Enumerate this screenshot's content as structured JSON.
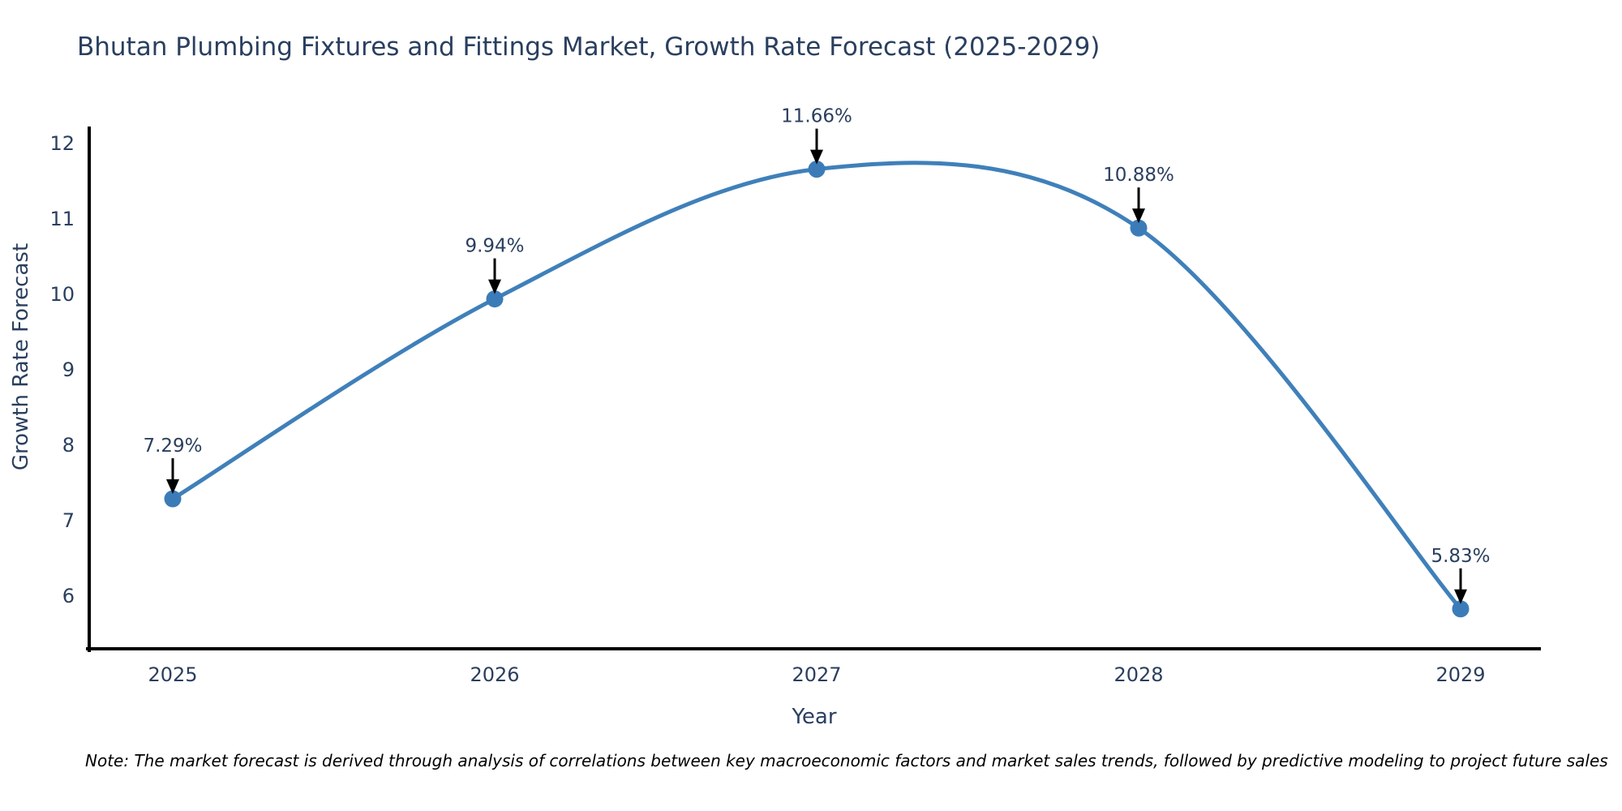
{
  "title": "Bhutan Plumbing Fixtures and Fittings Market, Growth Rate Forecast (2025-2029)",
  "note": "Note: The market forecast is derived through analysis of correlations between key macroeconomic factors and market sales trends, followed by predictive modeling to project future sales",
  "chart_data": {
    "type": "line",
    "line_shape": "spline",
    "title": "Bhutan Plumbing Fixtures and Fittings Market, Growth Rate Forecast (2025-2029)",
    "x": [
      2025,
      2026,
      2027,
      2028,
      2029
    ],
    "y": [
      7.29,
      9.94,
      11.66,
      10.88,
      5.83
    ],
    "point_labels": [
      "7.29%",
      "9.94%",
      "11.66%",
      "10.88%",
      "5.83%"
    ],
    "xlabel": "Year",
    "ylabel": "Growth Rate Forecast",
    "ylim": [
      6,
      12
    ],
    "yticks": [
      6,
      7,
      8,
      9,
      10,
      11,
      12
    ],
    "grid": false,
    "legend": "none",
    "markers": true,
    "annotation_style": "arrow-down-to-point",
    "colors": {
      "line": "#3f80ba",
      "marker": "#3b7cb8",
      "axis": "#000000",
      "text": "#2a3f5f",
      "annotation_text": "#2a3f5f",
      "annotation_arrow": "#000000",
      "note_text": "#000000",
      "background": "#ffffff"
    }
  }
}
